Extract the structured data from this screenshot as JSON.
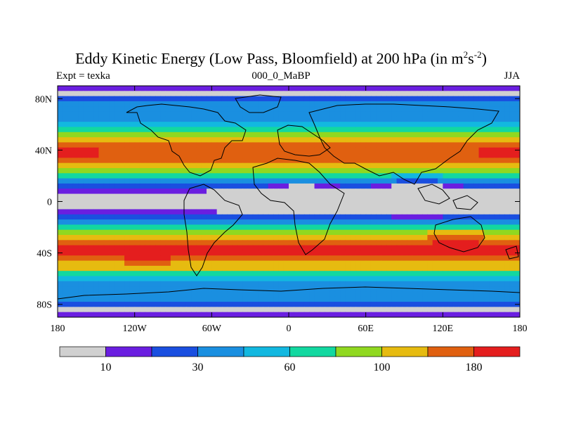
{
  "header": {
    "title_main": "Eddy Kinetic Energy (Low Pass, Bloomfield) at 200 hPa (in m",
    "title_sup1": "2",
    "title_mid": "s",
    "title_sup2": "-2",
    "title_end": ")",
    "left_label": "Expt = texka",
    "center_label": "000_0_MaBP",
    "right_label": "JJA"
  },
  "chart_data": {
    "type": "heatmap",
    "projection": "cylindrical-equidistant",
    "xlim": [
      -180,
      180
    ],
    "ylim": [
      -90,
      90
    ],
    "x_ticks": [
      -180,
      -120,
      -60,
      0,
      60,
      120,
      180
    ],
    "x_tick_labels": [
      "180",
      "120W",
      "60W",
      "0",
      "60E",
      "120E",
      "180"
    ],
    "y_ticks": [
      60,
      20,
      -20,
      -60
    ],
    "y_tick_labels": [
      "80N",
      "40N",
      "0",
      "40S",
      "80S"
    ],
    "y_tick_values": [
      80,
      40,
      0,
      -40,
      -80
    ],
    "colorbar": {
      "colors": [
        "#d0d0d0",
        "#6a1ee0",
        "#1a4fe0",
        "#1a8fe0",
        "#12b8e0",
        "#12d8a0",
        "#90d820",
        "#e6bb10",
        "#e06010",
        "#e41e1e"
      ],
      "levels": [
        10,
        20,
        30,
        45,
        60,
        80,
        100,
        140,
        180
      ],
      "labels": [
        "10",
        "30",
        "60",
        "100",
        "180"
      ],
      "label_positions": [
        1,
        3,
        5,
        7,
        9
      ]
    },
    "field_note": "Zonal bands of eddy kinetic energy; maxima near 40N and 40S, minimum over equatorial Africa"
  }
}
